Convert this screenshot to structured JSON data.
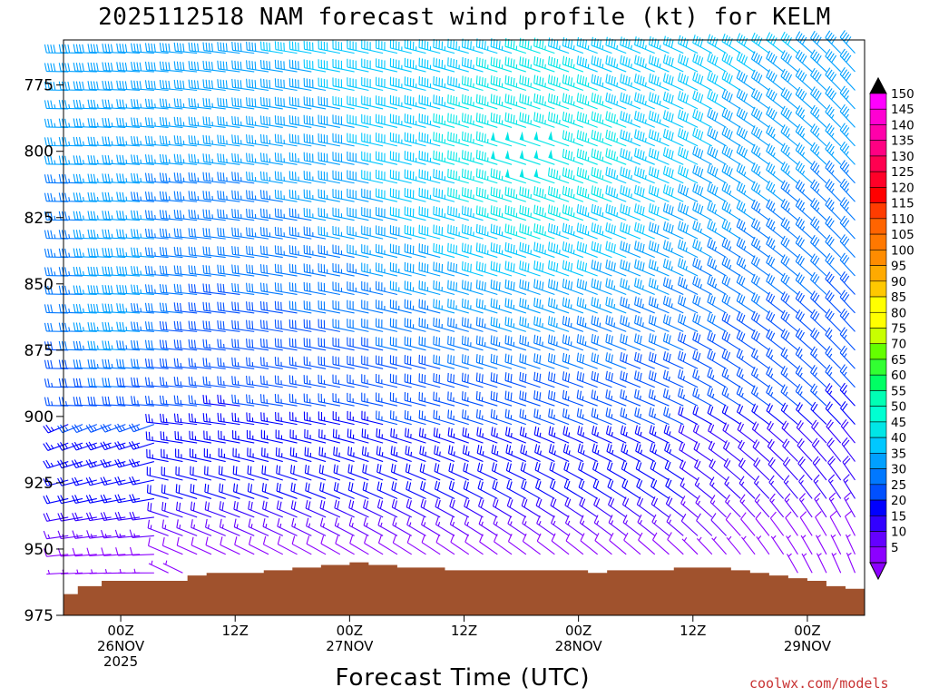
{
  "title": "2025112518 NAM forecast wind profile (kt) for KELM",
  "credit": "coolwx.com/models",
  "chart_data": {
    "type": "wind-barb-time-height",
    "title": "2025112518 NAM forecast wind profile (kt) for KELM",
    "xlabel": "Forecast Time (UTC)",
    "ylabel": "",
    "ylim": [
      975,
      758
    ],
    "y_ticks": [
      775,
      800,
      825,
      850,
      875,
      900,
      925,
      950,
      975
    ],
    "x_ticks": [
      {
        "hour": 6,
        "label1": "00Z",
        "label2": "26NOV",
        "label3": "2025"
      },
      {
        "hour": 18,
        "label1": "12Z",
        "label2": "",
        "label3": ""
      },
      {
        "hour": 30,
        "label1": "00Z",
        "label2": "27NOV",
        "label3": ""
      },
      {
        "hour": 42,
        "label1": "12Z",
        "label2": "",
        "label3": ""
      },
      {
        "hour": 54,
        "label1": "00Z",
        "label2": "28NOV",
        "label3": ""
      },
      {
        "hour": 66,
        "label1": "12Z",
        "label2": "",
        "label3": ""
      },
      {
        "hour": 78,
        "label1": "00Z",
        "label2": "29NOV",
        "label3": ""
      }
    ],
    "x_range_hours": [
      0,
      84
    ],
    "levels_hpa": [
      763,
      770,
      777,
      784,
      791,
      798,
      805,
      812,
      819,
      826,
      833,
      840,
      847,
      854,
      861,
      868,
      875,
      882,
      889,
      896,
      903,
      910,
      917,
      924,
      931,
      938,
      945,
      952,
      959,
      966
    ],
    "surface_pressure": [
      {
        "hour": 0,
        "p": 967
      },
      {
        "hour": 1.5,
        "p": 964
      },
      {
        "hour": 4,
        "p": 962
      },
      {
        "hour": 7,
        "p": 962
      },
      {
        "hour": 13,
        "p": 960
      },
      {
        "hour": 15,
        "p": 959
      },
      {
        "hour": 21,
        "p": 958
      },
      {
        "hour": 24,
        "p": 957
      },
      {
        "hour": 27,
        "p": 956
      },
      {
        "hour": 30,
        "p": 955
      },
      {
        "hour": 32,
        "p": 956
      },
      {
        "hour": 35,
        "p": 957
      },
      {
        "hour": 40,
        "p": 958
      },
      {
        "hour": 54,
        "p": 958
      },
      {
        "hour": 55,
        "p": 959
      },
      {
        "hour": 57,
        "p": 958
      },
      {
        "hour": 60,
        "p": 958
      },
      {
        "hour": 64,
        "p": 957
      },
      {
        "hour": 68,
        "p": 957
      },
      {
        "hour": 70,
        "p": 958
      },
      {
        "hour": 72,
        "p": 959
      },
      {
        "hour": 74,
        "p": 960
      },
      {
        "hour": 76,
        "p": 961
      },
      {
        "hour": 78,
        "p": 962
      },
      {
        "hour": 80,
        "p": 964
      },
      {
        "hour": 82,
        "p": 965
      },
      {
        "hour": 84,
        "p": 966
      }
    ],
    "colorbar": {
      "labels": [
        "150",
        "145",
        "140",
        "135",
        "130",
        "125",
        "120",
        "115",
        "110",
        "105",
        "100",
        "95",
        "90",
        "85",
        "80",
        "75",
        "70",
        "65",
        "60",
        "55",
        "50",
        "45",
        "40",
        "35",
        "30",
        "25",
        "20",
        "15",
        "10",
        "5"
      ],
      "colors": [
        "#ff00ff",
        "#ff00d2",
        "#ff00aa",
        "#ff0082",
        "#ff0050",
        "#ff0028",
        "#ff0000",
        "#ff3c00",
        "#ff6400",
        "#ff7800",
        "#ff8c00",
        "#ffaa00",
        "#ffc800",
        "#ffff00",
        "#ffff00",
        "#c8ff00",
        "#64ff00",
        "#32ff32",
        "#00ff64",
        "#00ffb4",
        "#00ffd2",
        "#00e6e6",
        "#00c8ff",
        "#00a0ff",
        "#0078ff",
        "#0050ff",
        "#0000ff",
        "#3200ff",
        "#6400ff",
        "#8c00ff"
      ]
    },
    "wind_model": "speed(kt,hour,pressure) and direction(deg) grid approximated from image: westerly/west-northwesterly flow, 15-45 kt aloft, weakest near ground"
  }
}
